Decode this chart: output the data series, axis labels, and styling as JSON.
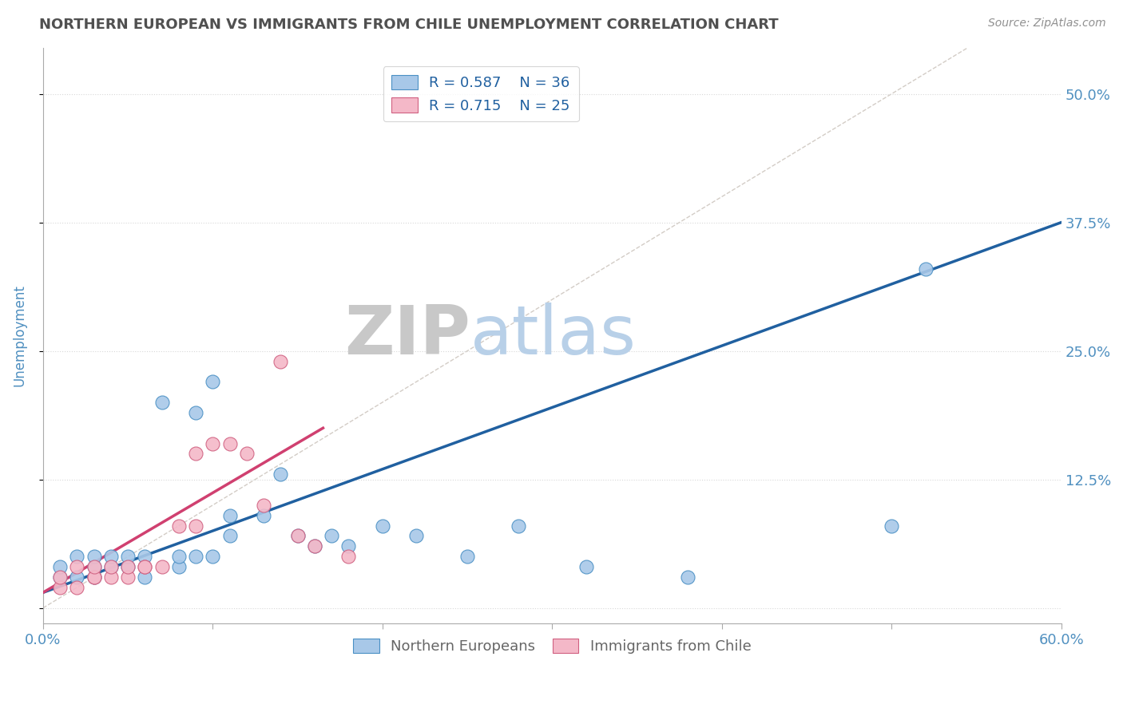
{
  "title": "NORTHERN EUROPEAN VS IMMIGRANTS FROM CHILE UNEMPLOYMENT CORRELATION CHART",
  "source": "Source: ZipAtlas.com",
  "ylabel": "Unemployment",
  "xlim": [
    0.0,
    0.6
  ],
  "ylim": [
    -0.015,
    0.545
  ],
  "ytick_positions": [
    0.0,
    0.125,
    0.25,
    0.375,
    0.5
  ],
  "ytick_labels": [
    "",
    "12.5%",
    "25.0%",
    "37.5%",
    "50.0%"
  ],
  "legend_r1": "R = 0.587",
  "legend_n1": "N = 36",
  "legend_r2": "R = 0.715",
  "legend_n2": "N = 25",
  "watermark_zip": "ZIP",
  "watermark_atlas": "atlas",
  "blue_scatter_x": [
    0.01,
    0.01,
    0.02,
    0.02,
    0.03,
    0.03,
    0.03,
    0.04,
    0.04,
    0.05,
    0.05,
    0.06,
    0.06,
    0.07,
    0.08,
    0.08,
    0.09,
    0.09,
    0.1,
    0.1,
    0.11,
    0.11,
    0.13,
    0.14,
    0.15,
    0.16,
    0.17,
    0.18,
    0.2,
    0.22,
    0.25,
    0.28,
    0.32,
    0.38,
    0.5,
    0.52
  ],
  "blue_scatter_y": [
    0.03,
    0.04,
    0.03,
    0.05,
    0.03,
    0.04,
    0.05,
    0.04,
    0.05,
    0.04,
    0.05,
    0.03,
    0.05,
    0.2,
    0.04,
    0.05,
    0.05,
    0.19,
    0.05,
    0.22,
    0.07,
    0.09,
    0.09,
    0.13,
    0.07,
    0.06,
    0.07,
    0.06,
    0.08,
    0.07,
    0.05,
    0.08,
    0.04,
    0.03,
    0.08,
    0.33
  ],
  "pink_scatter_x": [
    0.01,
    0.01,
    0.02,
    0.02,
    0.03,
    0.03,
    0.03,
    0.04,
    0.04,
    0.05,
    0.05,
    0.06,
    0.06,
    0.07,
    0.08,
    0.09,
    0.09,
    0.1,
    0.11,
    0.12,
    0.13,
    0.14,
    0.15,
    0.16,
    0.18
  ],
  "pink_scatter_y": [
    0.02,
    0.03,
    0.02,
    0.04,
    0.03,
    0.03,
    0.04,
    0.03,
    0.04,
    0.03,
    0.04,
    0.04,
    0.04,
    0.04,
    0.08,
    0.08,
    0.15,
    0.16,
    0.16,
    0.15,
    0.1,
    0.24,
    0.07,
    0.06,
    0.05
  ],
  "blue_line_x": [
    0.0,
    0.6
  ],
  "blue_line_y": [
    0.015,
    0.375
  ],
  "pink_line_x": [
    0.0,
    0.165
  ],
  "pink_line_y": [
    0.015,
    0.175
  ],
  "ref_line_x": [
    0.0,
    0.545
  ],
  "ref_line_y": [
    0.0,
    0.545
  ],
  "blue_scatter_color": "#a8c8e8",
  "blue_scatter_edge": "#4a90c4",
  "pink_scatter_color": "#f4b8c8",
  "pink_scatter_edge": "#d06080",
  "blue_line_color": "#2060a0",
  "pink_line_color": "#d04070",
  "ref_line_color": "#c8c0b8",
  "title_color": "#505050",
  "axis_label_color": "#5090c0",
  "watermark_color_zip": "#c8c8c8",
  "watermark_color_atlas": "#b8d0e8",
  "background_color": "#ffffff",
  "grid_color": "#d8d8d8",
  "source_color": "#909090"
}
